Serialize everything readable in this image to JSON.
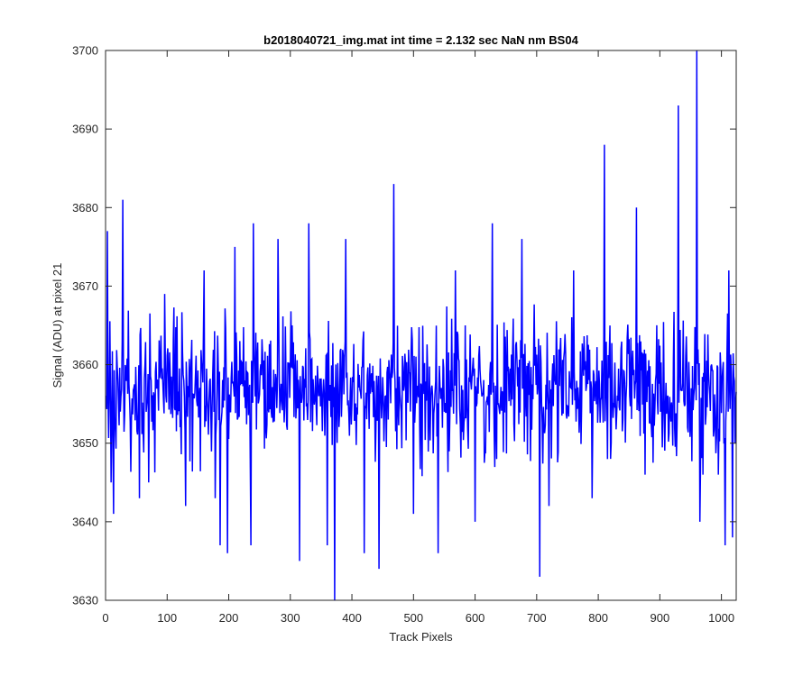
{
  "chart_data": {
    "type": "line",
    "title": "b2018040721_img.mat int time = 2.132 sec  NaN nm BS04",
    "xlabel": "Track Pixels",
    "ylabel": "Signal (ADU) at pixel 21",
    "xlim": [
      0,
      1024
    ],
    "ylim": [
      3630,
      3700
    ],
    "xticks": [
      0,
      100,
      200,
      300,
      400,
      500,
      600,
      700,
      800,
      900,
      1000
    ],
    "yticks": [
      3630,
      3640,
      3650,
      3660,
      3670,
      3680,
      3690,
      3700
    ],
    "grid": false,
    "legend": "none",
    "series": [
      {
        "color": "#0000ff",
        "x_start": 1,
        "x_step": 1,
        "mean": 3657,
        "spread": 6,
        "n_points": 1024,
        "peaks": [
          {
            "x": 3,
            "y": 3677
          },
          {
            "x": 9,
            "y": 3645
          },
          {
            "x": 13,
            "y": 3641
          },
          {
            "x": 28,
            "y": 3681
          },
          {
            "x": 55,
            "y": 3643
          },
          {
            "x": 70,
            "y": 3645
          },
          {
            "x": 96,
            "y": 3669
          },
          {
            "x": 130,
            "y": 3642
          },
          {
            "x": 160,
            "y": 3672
          },
          {
            "x": 178,
            "y": 3643
          },
          {
            "x": 186,
            "y": 3637
          },
          {
            "x": 198,
            "y": 3636
          },
          {
            "x": 210,
            "y": 3675
          },
          {
            "x": 236,
            "y": 3637
          },
          {
            "x": 240,
            "y": 3678
          },
          {
            "x": 280,
            "y": 3676
          },
          {
            "x": 315,
            "y": 3635
          },
          {
            "x": 330,
            "y": 3678
          },
          {
            "x": 360,
            "y": 3637
          },
          {
            "x": 372,
            "y": 3630
          },
          {
            "x": 390,
            "y": 3676
          },
          {
            "x": 420,
            "y": 3636
          },
          {
            "x": 444,
            "y": 3634
          },
          {
            "x": 468,
            "y": 3683
          },
          {
            "x": 500,
            "y": 3641
          },
          {
            "x": 540,
            "y": 3636
          },
          {
            "x": 568,
            "y": 3672
          },
          {
            "x": 600,
            "y": 3640
          },
          {
            "x": 628,
            "y": 3678
          },
          {
            "x": 676,
            "y": 3676
          },
          {
            "x": 705,
            "y": 3633
          },
          {
            "x": 720,
            "y": 3642
          },
          {
            "x": 760,
            "y": 3672
          },
          {
            "x": 790,
            "y": 3643
          },
          {
            "x": 810,
            "y": 3688
          },
          {
            "x": 862,
            "y": 3680
          },
          {
            "x": 876,
            "y": 3646
          },
          {
            "x": 930,
            "y": 3693
          },
          {
            "x": 960,
            "y": 3700
          },
          {
            "x": 965,
            "y": 3640
          },
          {
            "x": 995,
            "y": 3646
          },
          {
            "x": 1006,
            "y": 3637
          },
          {
            "x": 1012,
            "y": 3672
          },
          {
            "x": 1018,
            "y": 3638
          },
          {
            "x": 1022,
            "y": 3650
          }
        ]
      }
    ]
  }
}
